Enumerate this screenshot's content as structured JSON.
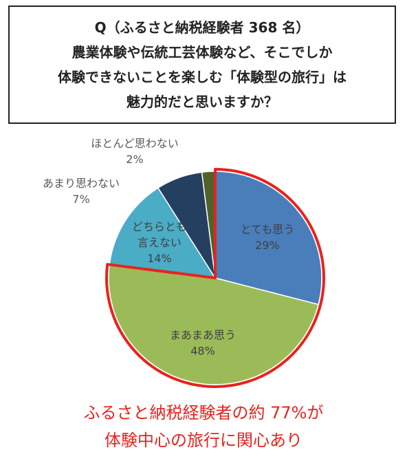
{
  "question": {
    "lines": [
      "Q（ふるさと納税経験者 368 名）",
      "農業体験や伝統工芸体験など、そこでしか",
      "体験できないことを楽しむ「体験型の旅行」は",
      "魅力的だと思いますか？"
    ]
  },
  "chart_data": {
    "type": "pie",
    "categories": [
      "とても思う",
      "まあまあ思う",
      "どちらとも言えない",
      "あまり思わない",
      "ほとんど思わない"
    ],
    "values": [
      29,
      48,
      14,
      7,
      2
    ],
    "labels": [
      {
        "text_lines": [
          "とても思う"
        ],
        "value": "29%"
      },
      {
        "text_lines": [
          "まあまあ思う"
        ],
        "value": "48%"
      },
      {
        "text_lines": [
          "どちらとも",
          "言えない"
        ],
        "value": "14%"
      },
      {
        "text_lines": [
          "あまり思わない"
        ],
        "value": "7%"
      },
      {
        "text_lines": [
          "ほとんど思わない"
        ],
        "value": "2%"
      }
    ],
    "colors": [
      "#4a7ebb",
      "#9bbb59",
      "#4bacc6",
      "#243f60",
      "#4f6228"
    ],
    "highlight": {
      "slices": [
        "とても思う",
        "まあまあ思う"
      ],
      "outline_color": "#e8231d"
    },
    "start_angle_deg": 0,
    "direction": "clockwise",
    "legend": "none",
    "title": ""
  },
  "conclusion": {
    "line1": "ふるさと納税経験者の約 77%が",
    "line2": "体験中心の旅行に関心あり"
  }
}
